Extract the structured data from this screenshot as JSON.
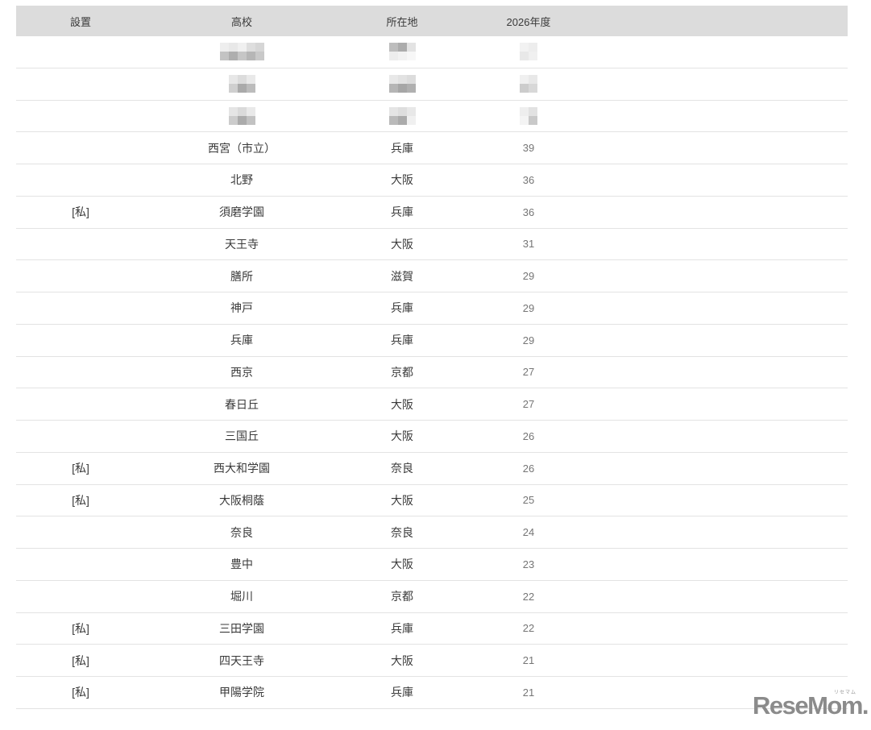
{
  "colors": {
    "header_bg": "#dcdcdc",
    "divider": "#e3e3e3",
    "text": "#3a3a3a",
    "number_text": "#757575",
    "logo": "#8b8b8b"
  },
  "table": {
    "columns": [
      {
        "key": "founding",
        "label": "設置"
      },
      {
        "key": "school",
        "label": "高校"
      },
      {
        "key": "location",
        "label": "所在地"
      },
      {
        "key": "year",
        "label": "2026年度"
      }
    ],
    "rows": [
      {
        "redacted": true,
        "founding": "",
        "school": "",
        "location": "",
        "year": "",
        "mosaics": {
          "school": [
            [
              "#eeeeee",
              "#e8e8e8",
              "#f0f0f0",
              "#dedede",
              "#d6d6d6"
            ],
            [
              "#c3c3c3",
              "#aeaeae",
              "#c6c6c6",
              "#b6b6b6",
              "#c9c9c9"
            ]
          ],
          "location": [
            [
              "#bdbdbd",
              "#acacac",
              "#e3e3e3"
            ],
            [
              "#ededed",
              "#f2f2f2",
              "#f7f7f7"
            ]
          ],
          "year": [
            [
              "#f2f2f2",
              "#ededed"
            ],
            [
              "#e8e8e8",
              "#f0f0f0"
            ]
          ]
        }
      },
      {
        "redacted": true,
        "founding": "",
        "school": "",
        "location": "",
        "year": "",
        "mosaics": {
          "school": [
            [
              "#e7e7e7",
              "#dcdcdc",
              "#e9e9e9"
            ],
            [
              "#cfcfcf",
              "#aaaaaa",
              "#bcbcbc"
            ]
          ],
          "location": [
            [
              "#e8e8e8",
              "#e2e2e2",
              "#dcdcdc"
            ],
            [
              "#b5b5b5",
              "#a6a6a6",
              "#b0b0b0"
            ]
          ],
          "year": [
            [
              "#f0f0f0",
              "#e8e8e8"
            ],
            [
              "#cccccc",
              "#d8d8d8"
            ]
          ]
        }
      },
      {
        "redacted": true,
        "founding": "",
        "school": "",
        "location": "",
        "year": "",
        "mosaics": {
          "school": [
            [
              "#e5e5e5",
              "#dadada",
              "#e9e9e9"
            ],
            [
              "#cccccc",
              "#ababab",
              "#c2c2c2"
            ]
          ],
          "location": [
            [
              "#e5e5e5",
              "#dedede",
              "#e8e8e8"
            ],
            [
              "#bababa",
              "#ababab",
              "#f0f0f0"
            ]
          ],
          "year": [
            [
              "#eeeeee",
              "#e2e2e2"
            ],
            [
              "#f4f4f4",
              "#c9c9c9"
            ]
          ]
        }
      },
      {
        "redacted": false,
        "founding": "",
        "school": "西宮（市立）",
        "location": "兵庫",
        "year": "39"
      },
      {
        "redacted": false,
        "founding": "",
        "school": "北野",
        "location": "大阪",
        "year": "36"
      },
      {
        "redacted": false,
        "founding": "[私]",
        "school": "須磨学園",
        "location": "兵庫",
        "year": "36"
      },
      {
        "redacted": false,
        "founding": "",
        "school": "天王寺",
        "location": "大阪",
        "year": "31"
      },
      {
        "redacted": false,
        "founding": "",
        "school": "膳所",
        "location": "滋賀",
        "year": "29"
      },
      {
        "redacted": false,
        "founding": "",
        "school": "神戸",
        "location": "兵庫",
        "year": "29"
      },
      {
        "redacted": false,
        "founding": "",
        "school": "兵庫",
        "location": "兵庫",
        "year": "29"
      },
      {
        "redacted": false,
        "founding": "",
        "school": "西京",
        "location": "京都",
        "year": "27"
      },
      {
        "redacted": false,
        "founding": "",
        "school": "春日丘",
        "location": "大阪",
        "year": "27"
      },
      {
        "redacted": false,
        "founding": "",
        "school": "三国丘",
        "location": "大阪",
        "year": "26"
      },
      {
        "redacted": false,
        "founding": "[私]",
        "school": "西大和学園",
        "location": "奈良",
        "year": "26"
      },
      {
        "redacted": false,
        "founding": "[私]",
        "school": "大阪桐蔭",
        "location": "大阪",
        "year": "25"
      },
      {
        "redacted": false,
        "founding": "",
        "school": "奈良",
        "location": "奈良",
        "year": "24"
      },
      {
        "redacted": false,
        "founding": "",
        "school": "豊中",
        "location": "大阪",
        "year": "23"
      },
      {
        "redacted": false,
        "founding": "",
        "school": "堀川",
        "location": "京都",
        "year": "22"
      },
      {
        "redacted": false,
        "founding": "[私]",
        "school": "三田学園",
        "location": "兵庫",
        "year": "22"
      },
      {
        "redacted": false,
        "founding": "[私]",
        "school": "四天王寺",
        "location": "大阪",
        "year": "21"
      },
      {
        "redacted": false,
        "founding": "[私]",
        "school": "甲陽学院",
        "location": "兵庫",
        "year": "21"
      }
    ]
  },
  "footer": {
    "logo_text": "ReseMom.",
    "logo_ruby": "リセマム"
  }
}
